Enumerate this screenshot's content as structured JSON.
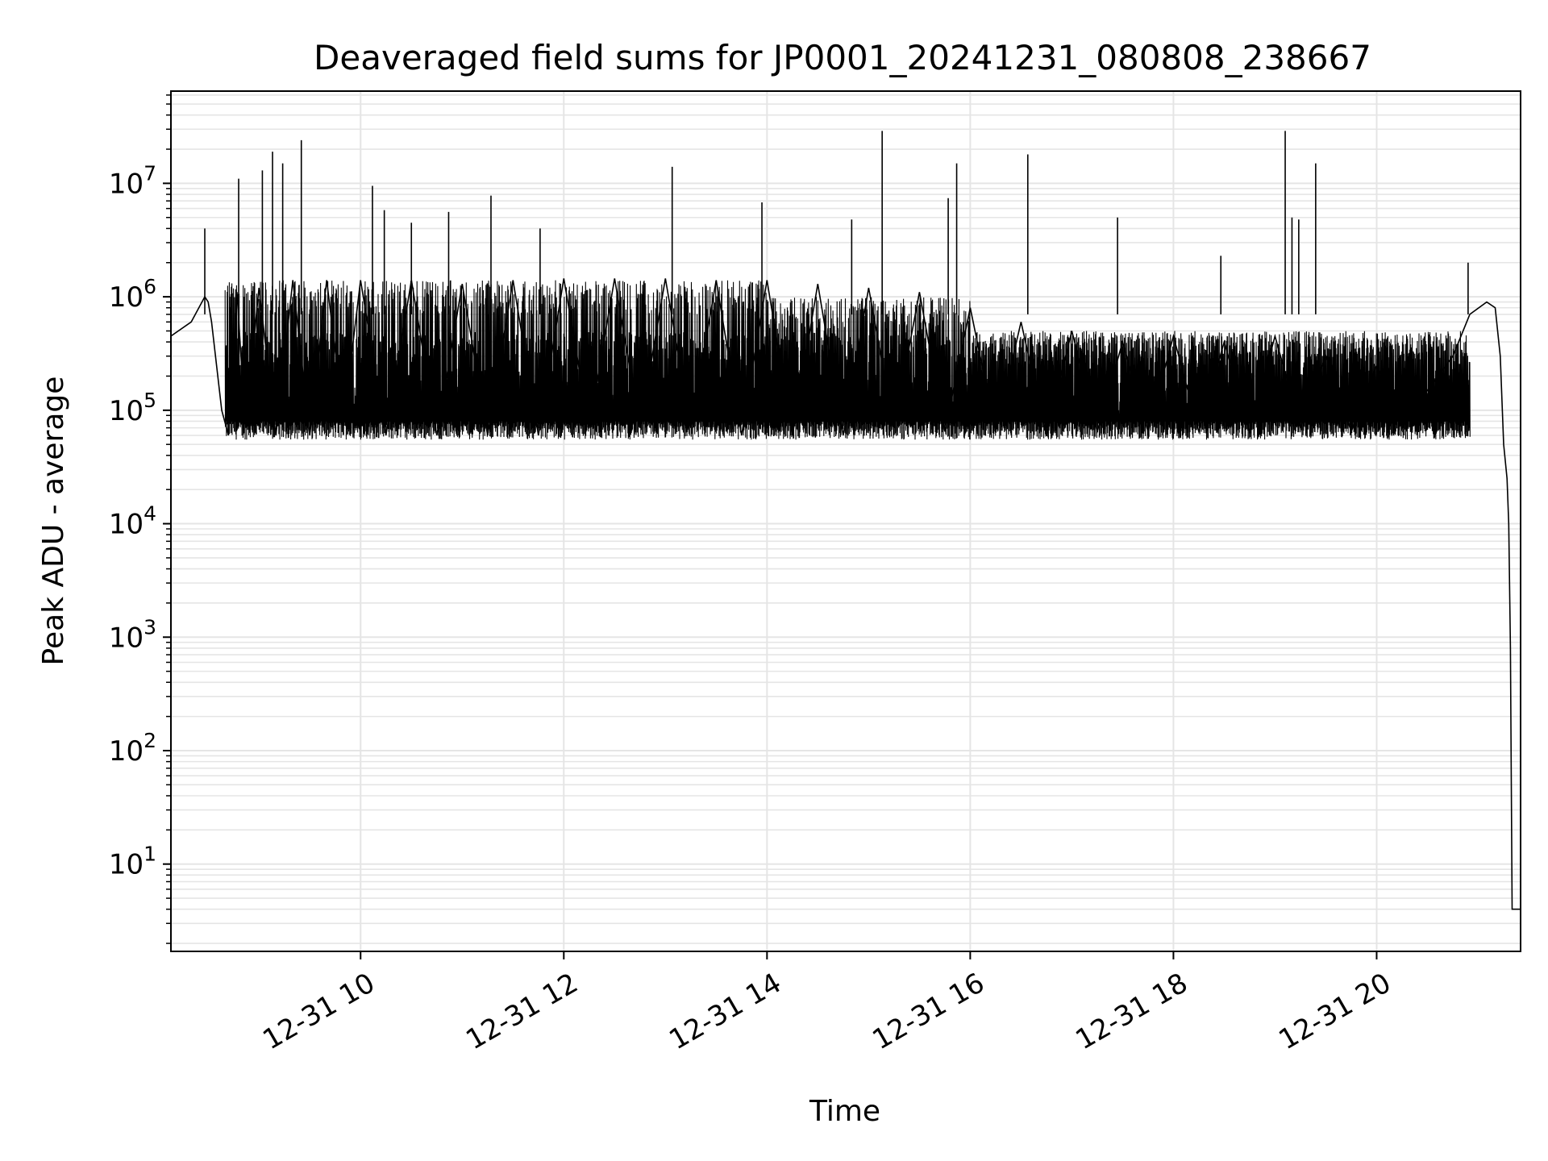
{
  "chart_data": {
    "type": "line",
    "title": "Deaveraged field sums for JP0001_20241231_080808_238667",
    "xlabel": "Time",
    "ylabel": "Peak ADU - average",
    "yscale": "log",
    "grid": true,
    "line_color": "#000000",
    "grid_color": "#e5e5e5",
    "xlim": [
      "2024-12-31 08:08",
      "2024-12-31 21:25"
    ],
    "ylim": [
      1.7,
      65000000
    ],
    "x_ticks": [
      {
        "value": "2024-12-31 10:00",
        "label": "12-31 10"
      },
      {
        "value": "2024-12-31 12:00",
        "label": "12-31 12"
      },
      {
        "value": "2024-12-31 14:00",
        "label": "12-31 14"
      },
      {
        "value": "2024-12-31 16:00",
        "label": "12-31 16"
      },
      {
        "value": "2024-12-31 18:00",
        "label": "12-31 18"
      },
      {
        "value": "2024-12-31 20:00",
        "label": "12-31 20"
      }
    ],
    "y_ticks": [
      {
        "value": 10,
        "base": "10",
        "exp": "1"
      },
      {
        "value": 100,
        "base": "10",
        "exp": "2"
      },
      {
        "value": 1000,
        "base": "10",
        "exp": "3"
      },
      {
        "value": 10000,
        "base": "10",
        "exp": "4"
      },
      {
        "value": 100000,
        "base": "10",
        "exp": "5"
      },
      {
        "value": 1000000,
        "base": "10",
        "exp": "6"
      },
      {
        "value": 10000000,
        "base": "10",
        "exp": "7"
      }
    ],
    "series": [
      {
        "x": [
          "2024-12-31 08:08",
          "2024-12-31 08:20",
          "2024-12-31 08:28",
          "2024-12-31 08:30",
          "2024-12-31 08:32",
          "2024-12-31 08:38",
          "2024-12-31 08:42",
          "2024-12-31 08:47",
          "2024-12-31 08:52",
          "2024-12-31 09:00",
          "2024-12-31 09:10",
          "2024-12-31 09:20",
          "2024-12-31 09:30",
          "2024-12-31 09:40",
          "2024-12-31 09:50",
          "2024-12-31 10:00",
          "2024-12-31 10:15",
          "2024-12-31 10:30",
          "2024-12-31 10:45",
          "2024-12-31 11:00",
          "2024-12-31 11:15",
          "2024-12-31 11:30",
          "2024-12-31 11:45",
          "2024-12-31 12:00",
          "2024-12-31 12:15",
          "2024-12-31 12:30",
          "2024-12-31 12:45",
          "2024-12-31 13:00",
          "2024-12-31 13:15",
          "2024-12-31 13:30",
          "2024-12-31 13:45",
          "2024-12-31 14:00",
          "2024-12-31 14:15",
          "2024-12-31 14:30",
          "2024-12-31 14:45",
          "2024-12-31 15:00",
          "2024-12-31 15:15",
          "2024-12-31 15:30",
          "2024-12-31 15:45",
          "2024-12-31 16:00",
          "2024-12-31 16:15",
          "2024-12-31 16:30",
          "2024-12-31 16:45",
          "2024-12-31 17:00",
          "2024-12-31 17:15",
          "2024-12-31 17:30",
          "2024-12-31 17:45",
          "2024-12-31 18:00",
          "2024-12-31 18:15",
          "2024-12-31 18:30",
          "2024-12-31 18:45",
          "2024-12-31 19:00",
          "2024-12-31 19:15",
          "2024-12-31 19:30",
          "2024-12-31 19:45",
          "2024-12-31 20:00",
          "2024-12-31 20:15",
          "2024-12-31 20:30",
          "2024-12-31 20:45",
          "2024-12-31 20:55",
          "2024-12-31 21:05",
          "2024-12-31 21:10",
          "2024-12-31 21:13",
          "2024-12-31 21:15",
          "2024-12-31 21:17",
          "2024-12-31 21:18",
          "2024-12-31 21:19",
          "2024-12-31 21:20",
          "2024-12-31 21:25"
        ],
        "y": [
          450000,
          600000,
          1000000,
          900000,
          600000,
          100000,
          60000,
          1100000,
          70000,
          1200000,
          60000,
          1400000,
          60000,
          1400000,
          80000,
          1400000,
          60000,
          1400000,
          60000,
          1300000,
          60000,
          1400000,
          60000,
          1450000,
          70000,
          1450000,
          70000,
          1450000,
          70000,
          1400000,
          60000,
          1400000,
          60000,
          1300000,
          60000,
          1200000,
          70000,
          1100000,
          65000,
          800000,
          65000,
          600000,
          60000,
          500000,
          65000,
          400000,
          65000,
          450000,
          65000,
          400000,
          65000,
          450000,
          70000,
          300000,
          65000,
          250000,
          70000,
          150000,
          300000,
          700000,
          900000,
          800000,
          300000,
          50000,
          25000,
          10000,
          800,
          4,
          4
        ]
      }
    ],
    "spikes": [
      {
        "x": "2024-12-31 08:28",
        "y": 4000000
      },
      {
        "x": "2024-12-31 08:48",
        "y": 11000000
      },
      {
        "x": "2024-12-31 09:02",
        "y": 13000000
      },
      {
        "x": "2024-12-31 09:08",
        "y": 19000000
      },
      {
        "x": "2024-12-31 09:14",
        "y": 15000000
      },
      {
        "x": "2024-12-31 09:25",
        "y": 24000000
      },
      {
        "x": "2024-12-31 10:07",
        "y": 9500000
      },
      {
        "x": "2024-12-31 10:14",
        "y": 5800000
      },
      {
        "x": "2024-12-31 10:30",
        "y": 4500000
      },
      {
        "x": "2024-12-31 10:52",
        "y": 5600000
      },
      {
        "x": "2024-12-31 11:17",
        "y": 7800000
      },
      {
        "x": "2024-12-31 11:46",
        "y": 4000000
      },
      {
        "x": "2024-12-31 13:04",
        "y": 14000000
      },
      {
        "x": "2024-12-31 13:57",
        "y": 6800000
      },
      {
        "x": "2024-12-31 14:50",
        "y": 4800000
      },
      {
        "x": "2024-12-31 15:08",
        "y": 29000000
      },
      {
        "x": "2024-12-31 15:47",
        "y": 7400000
      },
      {
        "x": "2024-12-31 15:52",
        "y": 15000000
      },
      {
        "x": "2024-12-31 16:34",
        "y": 18000000
      },
      {
        "x": "2024-12-31 17:27",
        "y": 5000000
      },
      {
        "x": "2024-12-31 18:28",
        "y": 2300000
      },
      {
        "x": "2024-12-31 19:06",
        "y": 29000000
      },
      {
        "x": "2024-12-31 19:10",
        "y": 5000000
      },
      {
        "x": "2024-12-31 19:14",
        "y": 4800000
      },
      {
        "x": "2024-12-31 19:24",
        "y": 15000000
      },
      {
        "x": "2024-12-31 20:54",
        "y": 2000000
      }
    ]
  }
}
